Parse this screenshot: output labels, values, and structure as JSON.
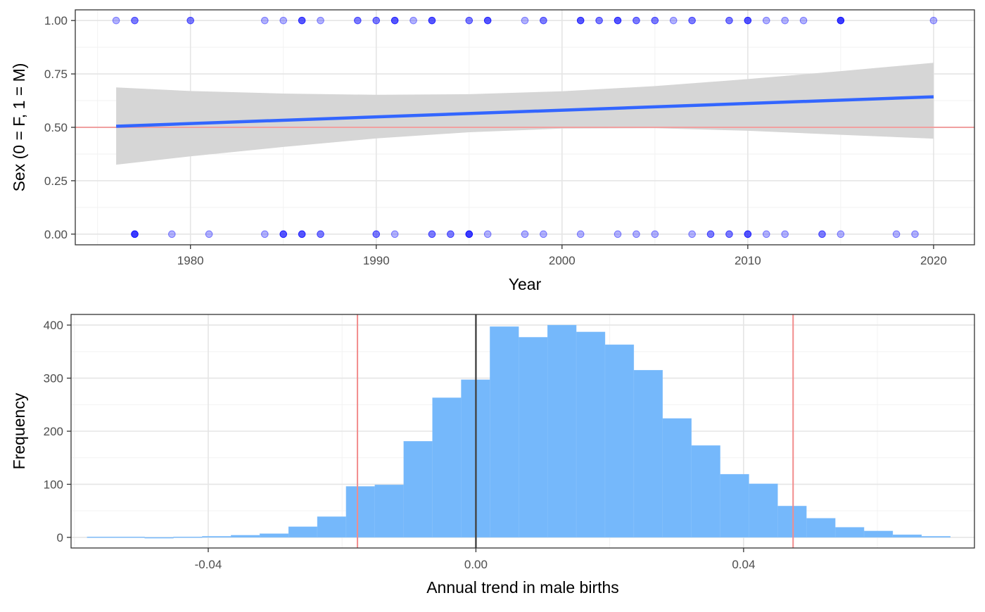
{
  "chart_data": [
    {
      "type": "scatter",
      "title": "",
      "xlabel": "Year",
      "ylabel": "Sex (0 = F, 1 = M)",
      "xlim": [
        1973.8,
        2022.2
      ],
      "ylim": [
        -0.05,
        1.05
      ],
      "x_ticks": [
        1980,
        1990,
        2000,
        2010,
        2020
      ],
      "x_tick_labels": [
        "1980",
        "1990",
        "2000",
        "2010",
        "2020"
      ],
      "y_ticks": [
        0,
        0.25,
        0.5,
        0.75,
        1
      ],
      "y_tick_labels": [
        "0.00",
        "0.25",
        "0.50",
        "0.75",
        "1.00"
      ],
      "grid": true,
      "reference_line": {
        "y": 0.5,
        "color": "#f0a0a0"
      },
      "point_color": "#0000ff",
      "points": [
        {
          "x": 1976,
          "y": 1,
          "n": 1
        },
        {
          "x": 1977,
          "y": 1,
          "n": 2
        },
        {
          "x": 1980,
          "y": 1,
          "n": 2
        },
        {
          "x": 1984,
          "y": 1,
          "n": 1
        },
        {
          "x": 1985,
          "y": 1,
          "n": 1
        },
        {
          "x": 1986,
          "y": 1,
          "n": 3
        },
        {
          "x": 1987,
          "y": 1,
          "n": 1
        },
        {
          "x": 1989,
          "y": 1,
          "n": 2
        },
        {
          "x": 1990,
          "y": 1,
          "n": 2
        },
        {
          "x": 1991,
          "y": 1,
          "n": 3
        },
        {
          "x": 1992,
          "y": 1,
          "n": 1
        },
        {
          "x": 1993,
          "y": 1,
          "n": 3
        },
        {
          "x": 1995,
          "y": 1,
          "n": 2
        },
        {
          "x": 1996,
          "y": 1,
          "n": 3
        },
        {
          "x": 1998,
          "y": 1,
          "n": 1
        },
        {
          "x": 1999,
          "y": 1,
          "n": 2
        },
        {
          "x": 2001,
          "y": 1,
          "n": 3
        },
        {
          "x": 2002,
          "y": 1,
          "n": 2
        },
        {
          "x": 2003,
          "y": 1,
          "n": 3
        },
        {
          "x": 2004,
          "y": 1,
          "n": 2
        },
        {
          "x": 2005,
          "y": 1,
          "n": 2
        },
        {
          "x": 2006,
          "y": 1,
          "n": 1
        },
        {
          "x": 2007,
          "y": 1,
          "n": 2
        },
        {
          "x": 2009,
          "y": 1,
          "n": 2
        },
        {
          "x": 2010,
          "y": 1,
          "n": 3
        },
        {
          "x": 2011,
          "y": 1,
          "n": 1
        },
        {
          "x": 2012,
          "y": 1,
          "n": 1
        },
        {
          "x": 2013,
          "y": 1,
          "n": 1
        },
        {
          "x": 2015,
          "y": 1,
          "n": 4
        },
        {
          "x": 2020,
          "y": 1,
          "n": 1
        },
        {
          "x": 1977,
          "y": 0,
          "n": 4
        },
        {
          "x": 1979,
          "y": 0,
          "n": 1
        },
        {
          "x": 1981,
          "y": 0,
          "n": 1
        },
        {
          "x": 1984,
          "y": 0,
          "n": 1
        },
        {
          "x": 1985,
          "y": 0,
          "n": 3
        },
        {
          "x": 1986,
          "y": 0,
          "n": 3
        },
        {
          "x": 1987,
          "y": 0,
          "n": 2
        },
        {
          "x": 1990,
          "y": 0,
          "n": 2
        },
        {
          "x": 1991,
          "y": 0,
          "n": 1
        },
        {
          "x": 1993,
          "y": 0,
          "n": 2
        },
        {
          "x": 1994,
          "y": 0,
          "n": 2
        },
        {
          "x": 1995,
          "y": 0,
          "n": 4
        },
        {
          "x": 1996,
          "y": 0,
          "n": 1
        },
        {
          "x": 1998,
          "y": 0,
          "n": 1
        },
        {
          "x": 1999,
          "y": 0,
          "n": 1
        },
        {
          "x": 2001,
          "y": 0,
          "n": 1
        },
        {
          "x": 2003,
          "y": 0,
          "n": 1
        },
        {
          "x": 2004,
          "y": 0,
          "n": 1
        },
        {
          "x": 2005,
          "y": 0,
          "n": 1
        },
        {
          "x": 2007,
          "y": 0,
          "n": 1
        },
        {
          "x": 2008,
          "y": 0,
          "n": 2
        },
        {
          "x": 2009,
          "y": 0,
          "n": 2
        },
        {
          "x": 2010,
          "y": 0,
          "n": 3
        },
        {
          "x": 2011,
          "y": 0,
          "n": 1
        },
        {
          "x": 2012,
          "y": 0,
          "n": 1
        },
        {
          "x": 2014,
          "y": 0,
          "n": 2
        },
        {
          "x": 2015,
          "y": 0,
          "n": 1
        },
        {
          "x": 2018,
          "y": 0,
          "n": 1
        },
        {
          "x": 2019,
          "y": 0,
          "n": 1
        }
      ],
      "trend_line": {
        "color": "#3366ff",
        "x": [
          1976,
          2020
        ],
        "y": [
          0.505,
          0.643
        ]
      },
      "confidence_band": {
        "color": "#d6d6d6",
        "x": [
          1976,
          1980,
          1985,
          1990,
          1995,
          2000,
          2005,
          2010,
          2015,
          2020
        ],
        "lower": [
          0.325,
          0.364,
          0.408,
          0.448,
          0.477,
          0.494,
          0.496,
          0.484,
          0.465,
          0.447
        ],
        "upper": [
          0.687,
          0.67,
          0.658,
          0.652,
          0.655,
          0.669,
          0.693,
          0.726,
          0.763,
          0.802
        ]
      }
    },
    {
      "type": "bar",
      "title": "",
      "xlabel": "Annual trend in male births",
      "ylabel": "Frequency",
      "xlim": [
        -0.0605,
        0.0745
      ],
      "ylim": [
        -20,
        420
      ],
      "x_ticks": [
        -0.04,
        0,
        0.04
      ],
      "x_tick_labels": [
        "-0.04",
        "0.00",
        "0.04"
      ],
      "y_ticks": [
        0,
        100,
        200,
        300,
        400
      ],
      "y_tick_labels": [
        "0",
        "100",
        "200",
        "300",
        "400"
      ],
      "grid": true,
      "bar_color": "#75b8fb",
      "bins": [
        {
          "x0": -0.0581,
          "x1": -0.0538,
          "value": 1
        },
        {
          "x0": -0.0538,
          "x1": -0.0495,
          "value": 1
        },
        {
          "x0": -0.0495,
          "x1": -0.0452,
          "value": 0
        },
        {
          "x0": -0.0452,
          "x1": -0.0409,
          "value": 1
        },
        {
          "x0": -0.0409,
          "x1": -0.0366,
          "value": 2
        },
        {
          "x0": -0.0366,
          "x1": -0.0323,
          "value": 4
        },
        {
          "x0": -0.0323,
          "x1": -0.028,
          "value": 7
        },
        {
          "x0": -0.028,
          "x1": -0.0237,
          "value": 20
        },
        {
          "x0": -0.0237,
          "x1": -0.0194,
          "value": 39
        },
        {
          "x0": -0.0194,
          "x1": -0.0151,
          "value": 96
        },
        {
          "x0": -0.0151,
          "x1": -0.0108,
          "value": 99
        },
        {
          "x0": -0.0108,
          "x1": -0.0065,
          "value": 181
        },
        {
          "x0": -0.0065,
          "x1": -0.0022,
          "value": 263
        },
        {
          "x0": -0.0022,
          "x1": 0.0021,
          "value": 297
        },
        {
          "x0": 0.0021,
          "x1": 0.0064,
          "value": 397
        },
        {
          "x0": 0.0064,
          "x1": 0.0107,
          "value": 377
        },
        {
          "x0": 0.0107,
          "x1": 0.015,
          "value": 400
        },
        {
          "x0": 0.015,
          "x1": 0.0193,
          "value": 387
        },
        {
          "x0": 0.0193,
          "x1": 0.0236,
          "value": 363
        },
        {
          "x0": 0.0236,
          "x1": 0.0279,
          "value": 315
        },
        {
          "x0": 0.0279,
          "x1": 0.0322,
          "value": 224
        },
        {
          "x0": 0.0322,
          "x1": 0.0365,
          "value": 173
        },
        {
          "x0": 0.0365,
          "x1": 0.0408,
          "value": 119
        },
        {
          "x0": 0.0408,
          "x1": 0.0451,
          "value": 101
        },
        {
          "x0": 0.0451,
          "x1": 0.0494,
          "value": 59
        },
        {
          "x0": 0.0494,
          "x1": 0.0537,
          "value": 36
        },
        {
          "x0": 0.0537,
          "x1": 0.058,
          "value": 19
        },
        {
          "x0": 0.058,
          "x1": 0.0623,
          "value": 12
        },
        {
          "x0": 0.0623,
          "x1": 0.0666,
          "value": 5
        },
        {
          "x0": 0.0666,
          "x1": 0.0709,
          "value": 2
        }
      ],
      "reference_lines": [
        {
          "x": -0.0177,
          "color": "#f28c8c"
        },
        {
          "x": 0.0474,
          "color": "#f28c8c"
        },
        {
          "x": 0.0,
          "color": "#444444"
        }
      ]
    }
  ]
}
